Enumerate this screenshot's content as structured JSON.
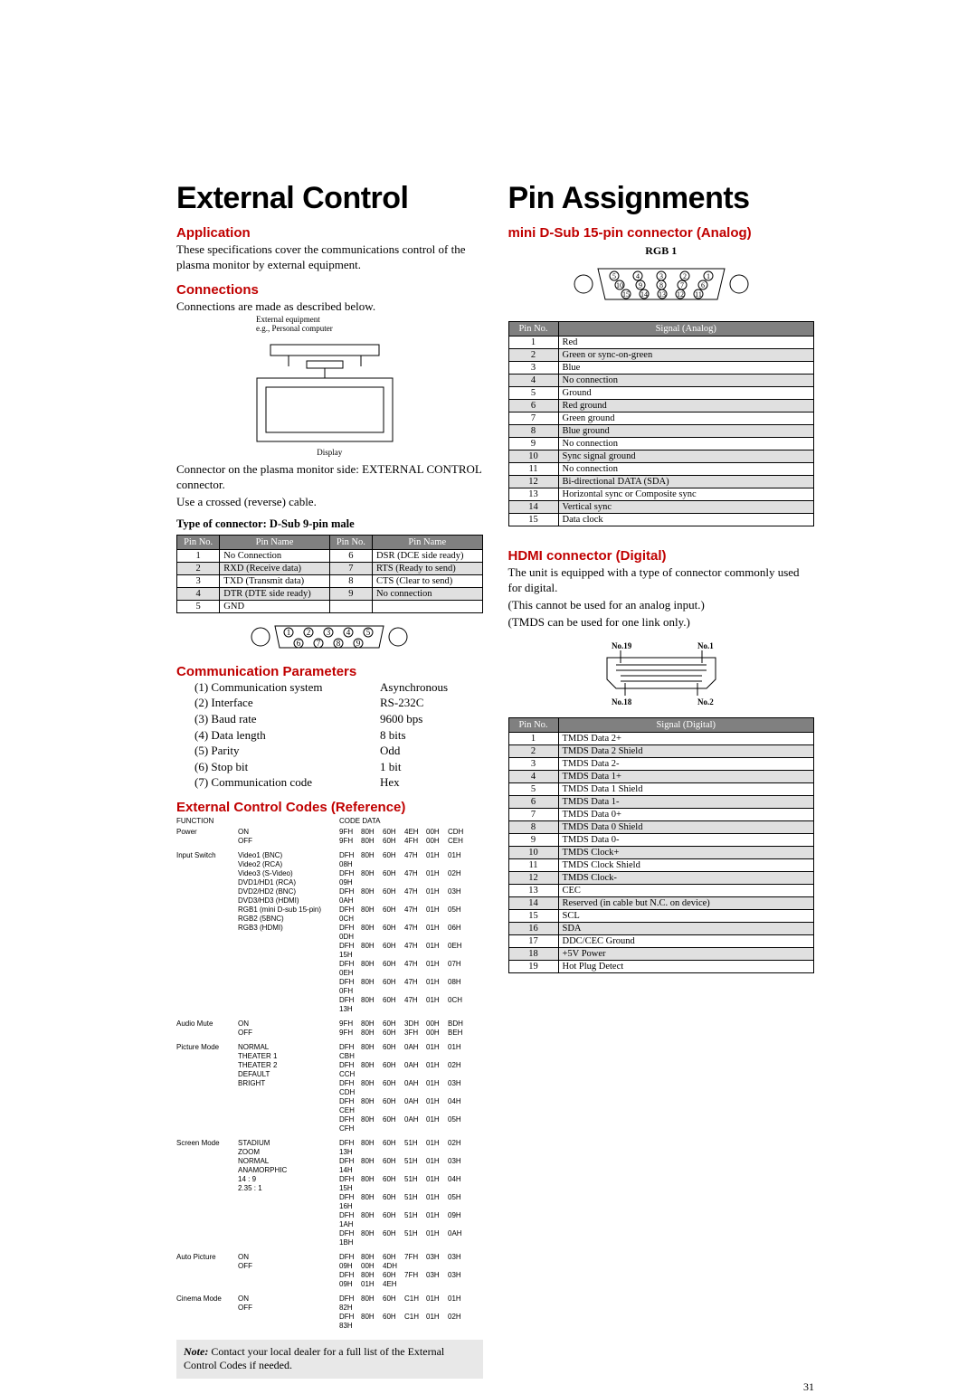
{
  "left": {
    "title": "External Control",
    "app_h": "Application",
    "app_p": "These specifications cover the communications control of the plasma monitor by external equipment.",
    "conn_h": "Connections",
    "conn_p": "Connections are made as described below.",
    "ext_label1": "External equipment",
    "ext_label2": "e.g., Personal computer",
    "display_label": "Display",
    "conn_p2": "Connector on the plasma monitor side: EXTERNAL CONTROL connector.",
    "conn_p3": "Use a crossed (reverse) cable.",
    "conn_sub": "Type of connector: D-Sub 9-pin male",
    "dsub9": {
      "head": [
        "Pin No.",
        "Pin Name",
        "Pin No.",
        "Pin Name"
      ],
      "rows": [
        [
          "1",
          "No Connection",
          "6",
          "DSR (DCE side ready)"
        ],
        [
          "2",
          "RXD (Receive data)",
          "7",
          "RTS (Ready to send)"
        ],
        [
          "3",
          "TXD (Transmit data)",
          "8",
          "CTS (Clear to send)"
        ],
        [
          "4",
          "DTR (DTE side ready)",
          "9",
          "No connection"
        ],
        [
          "5",
          "GND",
          "",
          ""
        ]
      ]
    },
    "comm_h": "Communication Parameters",
    "comm": [
      [
        "(1) Communication system",
        "Asynchronous"
      ],
      [
        "(2) Interface",
        "RS-232C"
      ],
      [
        "(3) Baud rate",
        "9600 bps"
      ],
      [
        "(4) Data length",
        "8 bits"
      ],
      [
        "(5) Parity",
        "Odd"
      ],
      [
        "(6) Stop bit",
        "1 bit"
      ],
      [
        "(7) Communication code",
        "Hex"
      ]
    ],
    "codes_h": "External Control Codes (Reference)",
    "codes_fn": "FUNCTION",
    "codes_cd": "CODE DATA",
    "codes": [
      {
        "fn": "Power",
        "rows": [
          [
            "ON",
            "9FH 80H 60H 4EH 00H CDH"
          ],
          [
            "OFF",
            "9FH 80H 60H 4FH 00H CEH"
          ]
        ]
      },
      {
        "fn": "Input Switch",
        "rows": [
          [
            "Video1 (BNC)",
            "DFH 80H 60H 47H 01H 01H 08H"
          ],
          [
            "Video2 (RCA)",
            "DFH 80H 60H 47H 01H 02H 09H"
          ],
          [
            "Video3 (S-Video)",
            "DFH 80H 60H 47H 01H 03H 0AH"
          ],
          [
            "DVD1/HD1 (RCA)",
            "DFH 80H 60H 47H 01H 05H 0CH"
          ],
          [
            "DVD2/HD2 (BNC)",
            "DFH 80H 60H 47H 01H 06H 0DH"
          ],
          [
            "DVD3/HD3 (HDMI)",
            "DFH 80H 60H 47H 01H 0EH 15H"
          ],
          [
            "RGB1 (mini D-sub 15-pin)",
            "DFH 80H 60H 47H 01H 07H 0EH"
          ],
          [
            "RGB2 (5BNC)",
            "DFH 80H 60H 47H 01H 08H 0FH"
          ],
          [
            "RGB3 (HDMI)",
            "DFH 80H 60H 47H 01H 0CH 13H"
          ]
        ]
      },
      {
        "fn": "Audio Mute",
        "rows": [
          [
            "ON",
            "9FH 80H 60H 3DH 00H BDH"
          ],
          [
            "OFF",
            "9FH 80H 60H 3FH 00H BEH"
          ]
        ]
      },
      {
        "fn": "Picture Mode",
        "rows": [
          [
            "NORMAL",
            "DFH 80H 60H 0AH 01H 01H CBH"
          ],
          [
            "THEATER 1",
            "DFH 80H 60H 0AH 01H 02H CCH"
          ],
          [
            "THEATER 2",
            "DFH 80H 60H 0AH 01H 03H CDH"
          ],
          [
            "DEFAULT",
            "DFH 80H 60H 0AH 01H 04H CEH"
          ],
          [
            "BRIGHT",
            "DFH 80H 60H 0AH 01H 05H CFH"
          ]
        ]
      },
      {
        "fn": "Screen Mode",
        "rows": [
          [
            "STADIUM",
            "DFH 80H 60H 51H 01H 02H 13H"
          ],
          [
            "ZOOM",
            "DFH 80H 60H 51H 01H 03H 14H"
          ],
          [
            "NORMAL",
            "DFH 80H 60H 51H 01H 04H 15H"
          ],
          [
            "ANAMORPHIC",
            "DFH 80H 60H 51H 01H 05H 16H"
          ],
          [
            "14 : 9",
            "DFH 80H 60H 51H 01H 09H 1AH"
          ],
          [
            "2.35 : 1",
            "DFH 80H 60H 51H 01H 0AH 1BH"
          ]
        ]
      },
      {
        "fn": "Auto Picture",
        "rows": [
          [
            "ON",
            "DFH 80H 60H 7FH 03H 03H 09H 00H 4DH"
          ],
          [
            "OFF",
            "DFH 80H 60H 7FH 03H 03H 09H 01H 4EH"
          ]
        ]
      },
      {
        "fn": "Cinema Mode",
        "rows": [
          [
            "ON",
            "DFH 80H 60H C1H 01H 01H 82H"
          ],
          [
            "OFF",
            "DFH 80H 60H C1H 01H 02H 83H"
          ]
        ]
      }
    ],
    "note_b": "Note:",
    "note": " Contact your local dealer for a full list of the External Control Codes if needed.",
    "page": "31"
  },
  "right": {
    "title": "Pin Assignments",
    "sub1": "mini D-Sub 15-pin connector (Analog)",
    "rgb": "RGB 1",
    "analog": {
      "head": [
        "Pin No.",
        "Signal (Analog)"
      ],
      "rows": [
        [
          "1",
          "Red"
        ],
        [
          "2",
          "Green or sync-on-green"
        ],
        [
          "3",
          "Blue"
        ],
        [
          "4",
          "No connection"
        ],
        [
          "5",
          "Ground"
        ],
        [
          "6",
          "Red ground"
        ],
        [
          "7",
          "Green ground"
        ],
        [
          "8",
          "Blue ground"
        ],
        [
          "9",
          "No connection"
        ],
        [
          "10",
          "Sync signal ground"
        ],
        [
          "11",
          "No connection"
        ],
        [
          "12",
          "Bi-directional DATA (SDA)"
        ],
        [
          "13",
          "Horizontal sync or Composite sync"
        ],
        [
          "14",
          "Vertical sync"
        ],
        [
          "15",
          "Data clock"
        ]
      ]
    },
    "hdmi_h": "HDMI connector (Digital)",
    "hdmi_p1": "The unit is equipped with a type of connector commonly used for digital.",
    "hdmi_p2": "(This cannot be used for an analog input.)",
    "hdmi_p3": "(TMDS can be used for one link only.)",
    "hdmi_no19": "No.19",
    "hdmi_no1": "No.1",
    "hdmi_no18": "No.18",
    "hdmi_no2": "No.2",
    "digital": {
      "head": [
        "Pin No.",
        "Signal (Digital)"
      ],
      "rows": [
        [
          "1",
          "TMDS Data 2+"
        ],
        [
          "2",
          "TMDS Data 2 Shield"
        ],
        [
          "3",
          "TMDS Data 2-"
        ],
        [
          "4",
          "TMDS Data 1+"
        ],
        [
          "5",
          "TMDS Data 1 Shield"
        ],
        [
          "6",
          "TMDS Data 1-"
        ],
        [
          "7",
          "TMDS Data 0+"
        ],
        [
          "8",
          "TMDS Data 0 Shield"
        ],
        [
          "9",
          "TMDS Data 0-"
        ],
        [
          "10",
          "TMDS Clock+"
        ],
        [
          "11",
          "TMDS Clock Shield"
        ],
        [
          "12",
          "TMDS Clock-"
        ],
        [
          "13",
          "CEC"
        ],
        [
          "14",
          "Reserved (in cable but N.C. on device)"
        ],
        [
          "15",
          "SCL"
        ],
        [
          "16",
          "SDA"
        ],
        [
          "17",
          "DDC/CEC Ground"
        ],
        [
          "18",
          "+5V Power"
        ],
        [
          "19",
          "Hot Plug Detect"
        ]
      ]
    }
  }
}
